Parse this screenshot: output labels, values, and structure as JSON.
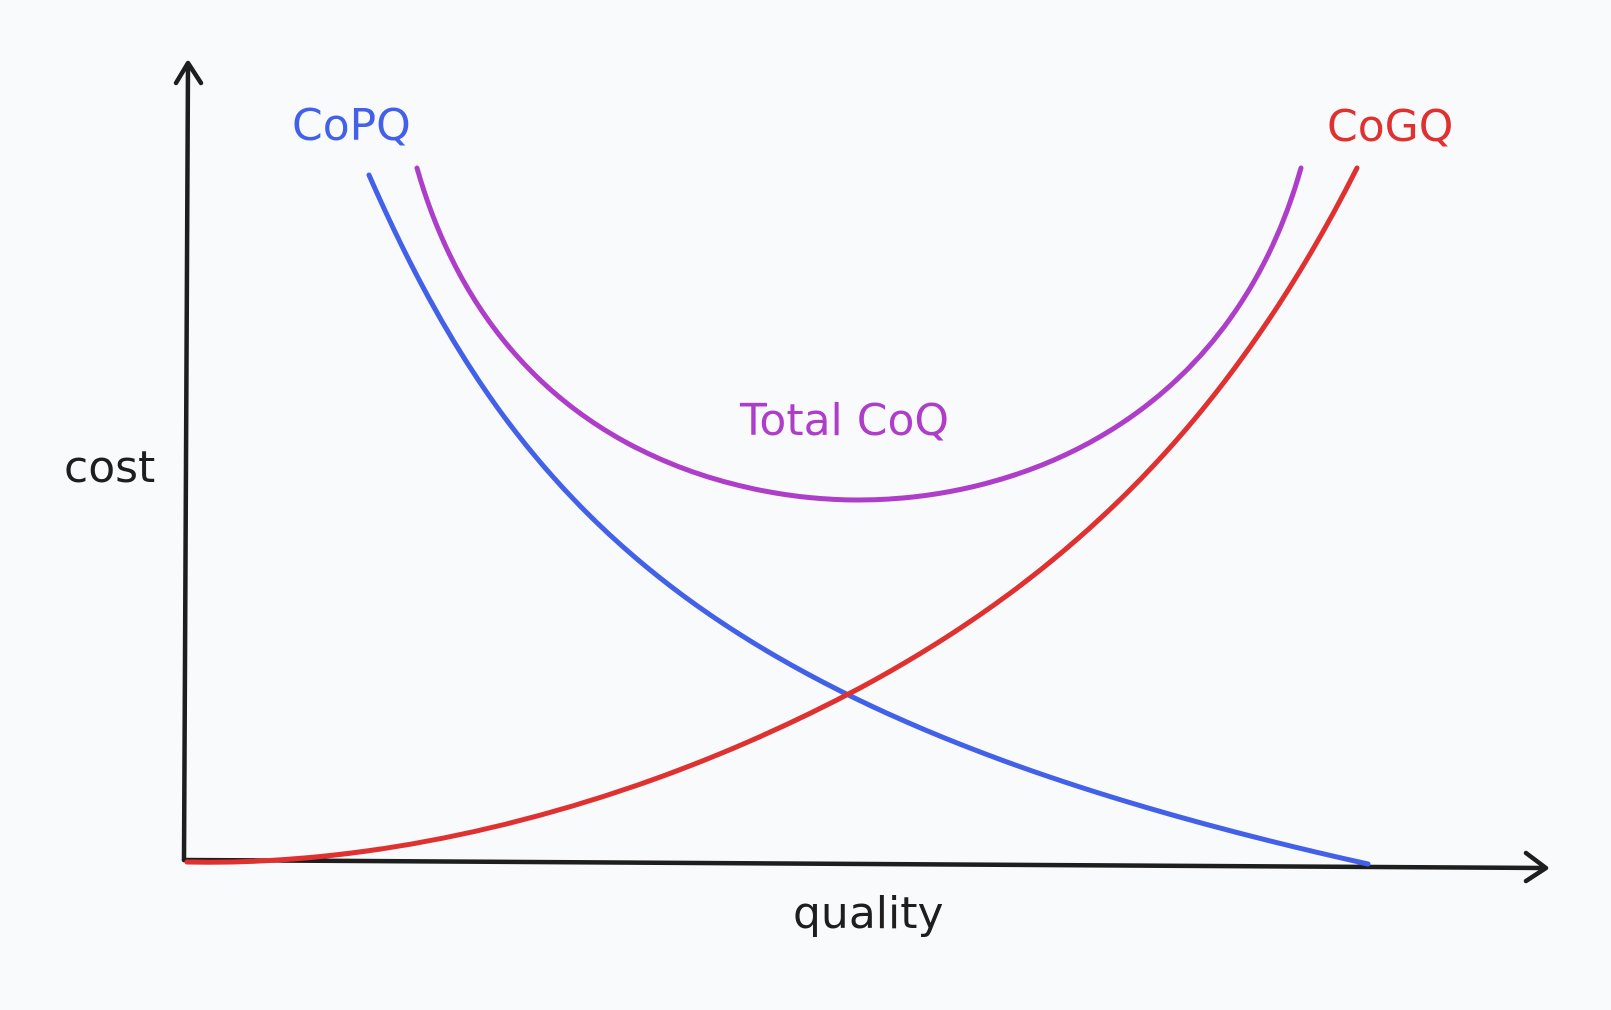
{
  "axes": {
    "y_label": "cost",
    "x_label": "quality"
  },
  "curves": {
    "copq": {
      "label": "CoPQ",
      "color": "#4361e8"
    },
    "cogq": {
      "label": "CoGQ",
      "color": "#e03131"
    },
    "total": {
      "label": "Total CoQ",
      "color": "#ae3ec9"
    }
  },
  "colors": {
    "axis": "#1e1e1e",
    "background": "#f8fafc"
  }
}
